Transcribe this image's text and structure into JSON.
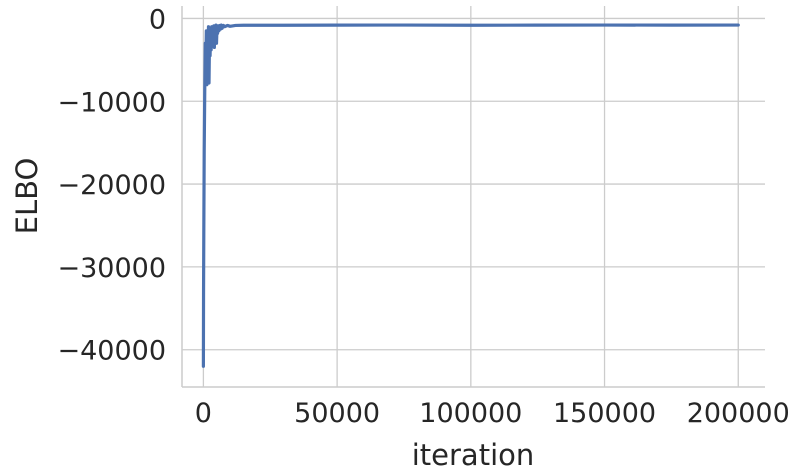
{
  "chart_data": {
    "type": "line",
    "xlabel": "iteration",
    "ylabel": "ELBO",
    "xlim": [
      -8000,
      210000
    ],
    "ylim": [
      -44500,
      1500
    ],
    "xticks": [
      0,
      50000,
      100000,
      150000,
      200000
    ],
    "xtick_labels": [
      "0",
      "50000",
      "100000",
      "150000",
      "200000"
    ],
    "yticks": [
      0,
      -10000,
      -20000,
      -30000,
      -40000
    ],
    "ytick_labels": [
      "0",
      "−10000",
      "−20000",
      "−30000",
      "−40000"
    ],
    "grid": true,
    "colors": {
      "series": "#4c72b0",
      "grid": "#cccccc",
      "text": "#262626"
    },
    "series": [
      {
        "x": [
          0,
          60,
          150,
          300,
          500,
          700,
          900,
          1100,
          1300,
          1500,
          1700,
          1900,
          2100,
          2300,
          2500,
          2700,
          2900,
          3100,
          3300,
          3500,
          3700,
          3900,
          4100,
          4300,
          4500,
          4700,
          4900,
          5100,
          5300,
          5500,
          5800,
          6100,
          6400,
          6700,
          7000,
          7500,
          8000,
          9000,
          10000,
          12000,
          15000,
          20000,
          30000,
          50000,
          75000,
          100000,
          125000,
          150000,
          175000,
          200000
        ],
        "y": [
          -42000,
          -33000,
          -26000,
          -16000,
          -9000,
          -3000,
          -6000,
          -1500,
          -8000,
          -2500,
          -5500,
          -1000,
          -7800,
          -2000,
          -4500,
          -1200,
          -3800,
          -1000,
          -3000,
          -1500,
          -2500,
          -900,
          -3500,
          -1100,
          -2200,
          -800,
          -3000,
          -1000,
          -1800,
          -900,
          -1500,
          -850,
          -1300,
          -800,
          -1200,
          -850,
          -1000,
          -850,
          -950,
          -850,
          -820,
          -820,
          -820,
          -810,
          -800,
          -820,
          -810,
          -800,
          -810,
          -800
        ]
      }
    ]
  }
}
